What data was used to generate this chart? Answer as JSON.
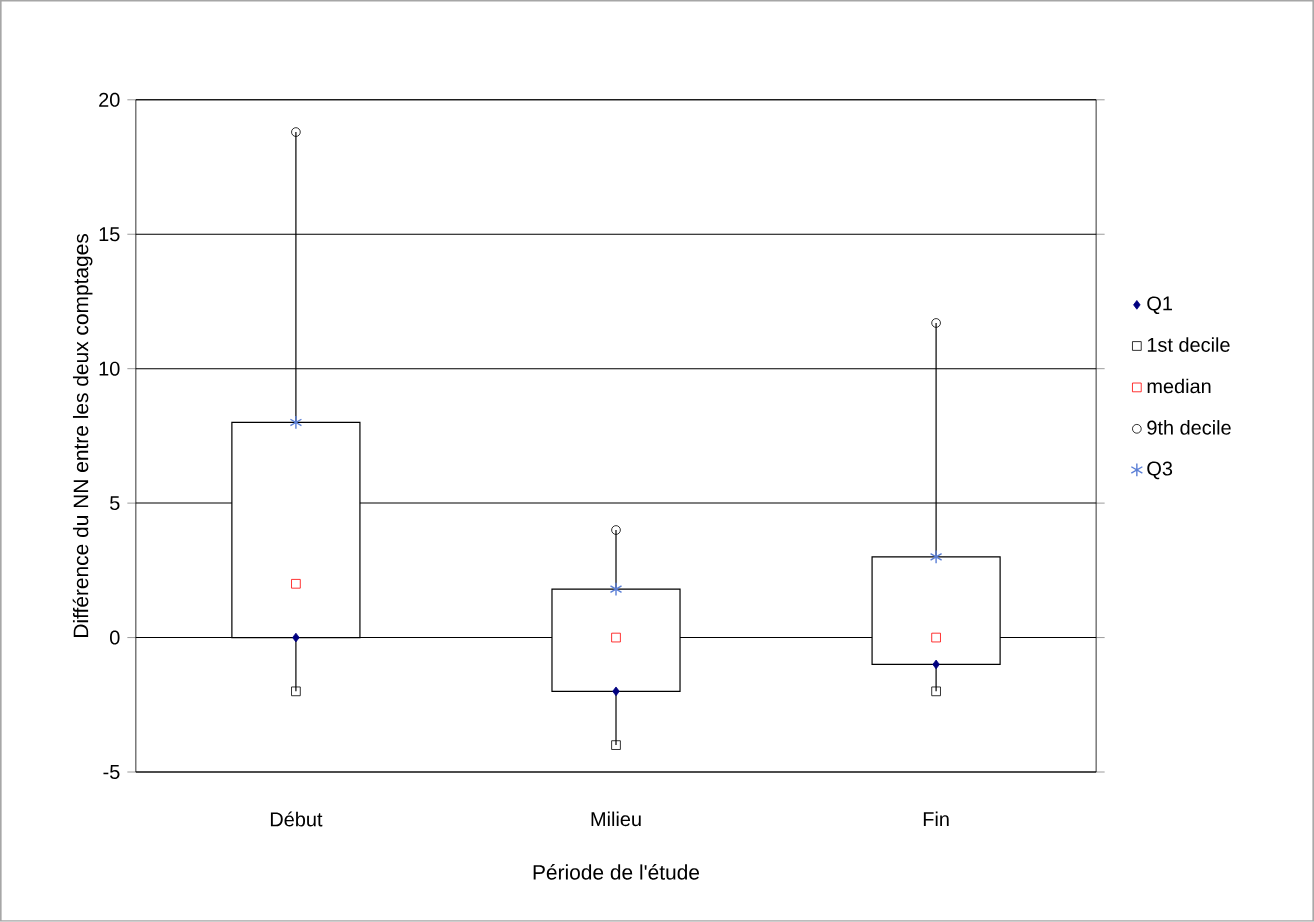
{
  "chart_data": {
    "type": "box",
    "xlabel": "Période de l'étude",
    "ylabel": "Différence du NN entre les deux comptages",
    "categories": [
      "Début",
      "Milieu",
      "Fin"
    ],
    "boxes": [
      {
        "low": -2,
        "q1": 0,
        "q3": 8,
        "high": 18.8
      },
      {
        "low": -4,
        "q1": -2,
        "q3": 1.8,
        "high": 4
      },
      {
        "low": -2,
        "q1": -1,
        "q3": 3,
        "high": 11.7
      }
    ],
    "series": [
      {
        "name": "Q1",
        "type": "scatter",
        "marker": "diamond",
        "color": "#000080",
        "values": [
          0,
          -2,
          -1
        ]
      },
      {
        "name": "1st decile",
        "type": "scatter",
        "marker": "square",
        "color": "#000000",
        "values": [
          -2,
          -4,
          -2
        ]
      },
      {
        "name": "median",
        "type": "scatter",
        "marker": "square",
        "color": "#ff0000",
        "values": [
          2,
          0,
          0
        ]
      },
      {
        "name": "9th decile",
        "type": "scatter",
        "marker": "circle",
        "color": "#000000",
        "values": [
          18.8,
          4,
          11.7
        ]
      },
      {
        "name": "Q3",
        "type": "scatter",
        "marker": "cross",
        "color": "#5b7fd6",
        "values": [
          8,
          1.8,
          3
        ]
      }
    ],
    "ylim": [
      -5,
      20
    ],
    "yticks": [
      -5,
      0,
      5,
      10,
      15,
      20
    ],
    "grid": "y",
    "legend": "right"
  }
}
